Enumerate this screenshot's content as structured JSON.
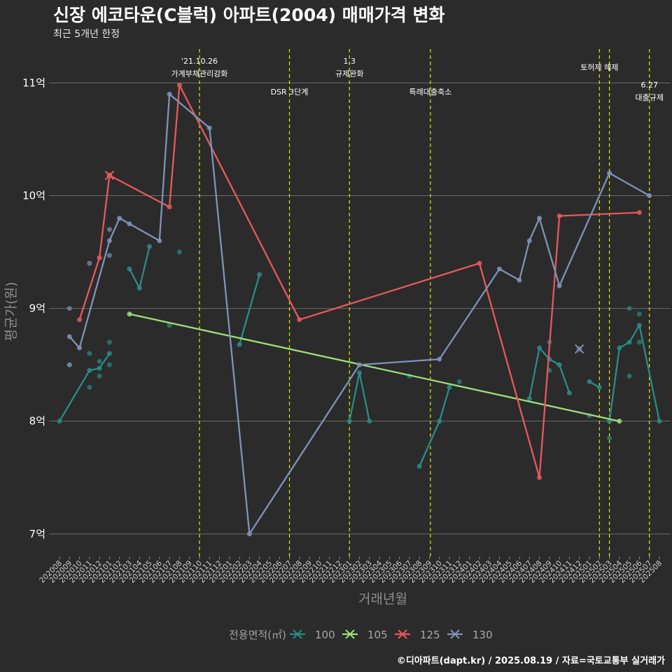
{
  "header": {
    "title": "신장 에코타운(C블럭) 아파트(2004) 매매가격 변화",
    "subtitle": "최근 5개년 한정",
    "caption": "©디아파트(dapt.kr) / 2025.08.19 / 자료=국토교통부 실거래가"
  },
  "colors": {
    "background": "#2b2b2b",
    "grid": "#6a6a6a",
    "event_line": "#e5e500"
  },
  "chart_data": {
    "type": "line",
    "xlabel": "거래년월",
    "ylabel": "평균가(원)",
    "ylim": [
      6.8,
      11.35
    ],
    "y_ticks": [
      {
        "value": 7,
        "label": "7억"
      },
      {
        "value": 8,
        "label": "8억"
      },
      {
        "value": 9,
        "label": "9억"
      },
      {
        "value": 10,
        "label": "10억"
      },
      {
        "value": 11,
        "label": "11억"
      }
    ],
    "x_categories": [
      "202008",
      "202009",
      "202010",
      "202011",
      "202012",
      "202101",
      "202102",
      "202103",
      "202104",
      "202105",
      "202106",
      "202107",
      "202108",
      "202109",
      "202110",
      "202111",
      "202112",
      "202201",
      "202202",
      "202203",
      "202204",
      "202205",
      "202206",
      "202207",
      "202208",
      "202209",
      "202210",
      "202211",
      "202212",
      "202301",
      "202302",
      "202303",
      "202304",
      "202305",
      "202306",
      "202307",
      "202308",
      "202309",
      "202310",
      "202311",
      "202312",
      "202401",
      "202402",
      "202403",
      "202404",
      "202405",
      "202406",
      "202407",
      "202408",
      "202409",
      "202410",
      "202411",
      "202412",
      "202501",
      "202502",
      "202503",
      "202504",
      "202505",
      "202506",
      "202507",
      "202508"
    ],
    "events": [
      {
        "x": 14.0,
        "lines": [
          "'21.10.26",
          "가계부채관리강화"
        ],
        "tier": 0
      },
      {
        "x": 23.0,
        "lines": [
          "DSR 3단계"
        ],
        "tier": 2
      },
      {
        "x": 29.0,
        "lines": [
          "1.3",
          "규제완화"
        ],
        "tier": 0
      },
      {
        "x": 37.1,
        "lines": [
          "특례대출축소"
        ],
        "tier": 2
      },
      {
        "x": 54.0,
        "lines": [
          "토허제 해제"
        ],
        "tier": 1
      },
      {
        "x": 55.0,
        "lines": [],
        "tier": 1
      },
      {
        "x": 59.0,
        "lines": [
          "6.27",
          "대출규제"
        ],
        "tier": 3
      }
    ],
    "legend": {
      "title": "전용면적(㎡)",
      "position": "bottom"
    },
    "series": [
      {
        "name": "100",
        "color": "#2a8c87",
        "segments": [
          [
            [
              0,
              8.0
            ],
            [
              3,
              8.45
            ],
            [
              4,
              8.47
            ],
            [
              5,
              8.6
            ]
          ],
          [
            [
              7,
              9.35
            ],
            [
              8,
              9.18
            ],
            [
              9,
              9.55
            ]
          ],
          [
            [
              18,
              8.68
            ],
            [
              20,
              9.3
            ]
          ],
          [
            [
              29,
              8.0
            ],
            [
              30,
              8.43
            ],
            [
              31,
              8.0
            ]
          ],
          [
            [
              36,
              7.6
            ],
            [
              38,
              8.0
            ],
            [
              39,
              8.3
            ]
          ],
          [
            [
              47,
              8.2
            ],
            [
              48,
              8.65
            ],
            [
              49,
              8.55
            ],
            [
              50,
              8.5
            ],
            [
              51,
              8.25
            ]
          ],
          [
            [
              53,
              8.35
            ],
            [
              54,
              8.3
            ]
          ],
          [
            [
              55,
              8.0
            ],
            [
              56,
              8.65
            ],
            [
              57,
              8.7
            ],
            [
              58,
              8.85
            ],
            [
              60,
              8.0
            ]
          ]
        ],
        "points": [
          [
            1,
            8.5
          ],
          [
            4,
            8.53
          ],
          [
            4,
            8.4
          ],
          [
            5,
            8.5
          ],
          [
            5,
            8.7
          ],
          [
            3,
            8.3
          ],
          [
            3,
            8.6
          ],
          [
            12,
            9.5
          ],
          [
            11,
            8.85
          ],
          [
            35,
            8.4
          ],
          [
            40,
            8.35
          ],
          [
            49,
            8.7
          ],
          [
            49,
            8.45
          ],
          [
            53,
            8.05
          ],
          [
            55,
            7.85
          ],
          [
            57,
            9.0
          ],
          [
            57,
            8.4
          ],
          [
            58,
            8.95
          ],
          [
            58,
            8.7
          ]
        ]
      },
      {
        "name": "105",
        "color": "#9be07a",
        "segments": [
          [
            [
              7,
              8.95
            ],
            [
              56,
              8.0
            ]
          ]
        ],
        "points": [],
        "x_markers": []
      },
      {
        "name": "125",
        "color": "#e8585c",
        "segments": [
          [
            [
              2,
              8.9
            ],
            [
              4,
              9.45
            ],
            [
              5,
              10.18
            ],
            [
              11,
              9.9
            ],
            [
              12,
              10.98
            ],
            [
              24,
              8.9
            ],
            [
              42,
              9.4
            ],
            [
              48,
              7.5
            ],
            [
              50,
              9.82
            ],
            [
              58,
              9.85
            ]
          ]
        ],
        "points": [],
        "x_markers": [
          [
            5,
            10.18
          ]
        ]
      },
      {
        "name": "130",
        "color": "#7f93b8",
        "segments": [
          [
            [
              1,
              8.75
            ],
            [
              2,
              8.65
            ],
            [
              5,
              9.6
            ],
            [
              6,
              9.8
            ],
            [
              7,
              9.75
            ],
            [
              10,
              9.6
            ],
            [
              11,
              10.9
            ],
            [
              15,
              10.6
            ],
            [
              19,
              7.0
            ],
            [
              30,
              8.5
            ],
            [
              38,
              8.55
            ],
            [
              44,
              9.35
            ],
            [
              46,
              9.25
            ],
            [
              47,
              9.6
            ],
            [
              48,
              9.8
            ],
            [
              50,
              9.2
            ],
            [
              55,
              10.2
            ],
            [
              59,
              10.0
            ]
          ]
        ],
        "points": [
          [
            1,
            9.0
          ],
          [
            1,
            8.5
          ],
          [
            3,
            9.4
          ],
          [
            5,
            9.7
          ],
          [
            5,
            9.47
          ]
        ],
        "x_markers": [
          [
            52,
            8.64
          ]
        ]
      }
    ]
  }
}
